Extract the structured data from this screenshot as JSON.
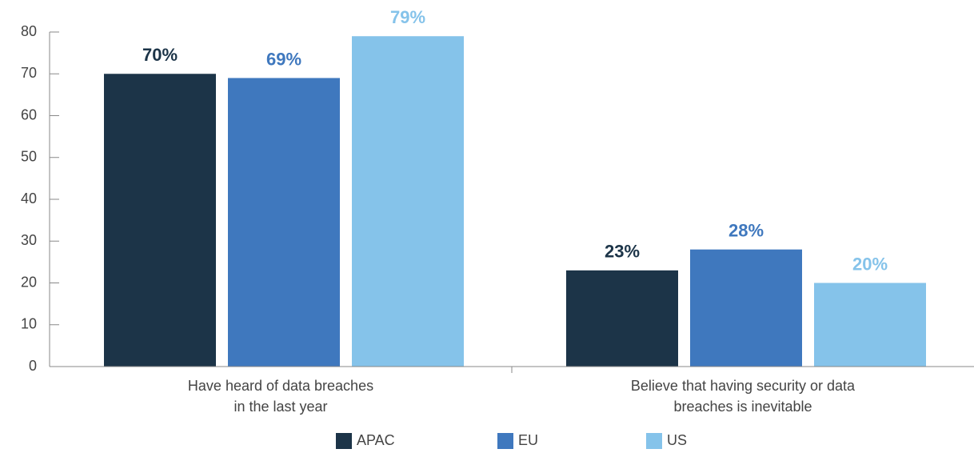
{
  "chart_data": {
    "type": "bar",
    "categories": [
      [
        "Have heard of data breaches",
        "in the last year"
      ],
      [
        "Believe that having security or data",
        "breaches is inevitable"
      ]
    ],
    "series": [
      {
        "name": "APAC",
        "color": "#1c3448",
        "values": [
          70,
          23
        ],
        "value_labels": [
          "70%",
          "23%"
        ]
      },
      {
        "name": "EU",
        "color": "#3f78be",
        "values": [
          69,
          28
        ],
        "value_labels": [
          "69%",
          "28%"
        ]
      },
      {
        "name": "US",
        "color": "#85c3ea",
        "values": [
          79,
          20
        ],
        "value_labels": [
          "79%",
          "20%"
        ]
      }
    ],
    "ylim": [
      0,
      80
    ],
    "yticks": [
      0,
      10,
      20,
      30,
      40,
      50,
      60,
      70,
      80
    ],
    "grid": false,
    "legend": "bottom"
  }
}
